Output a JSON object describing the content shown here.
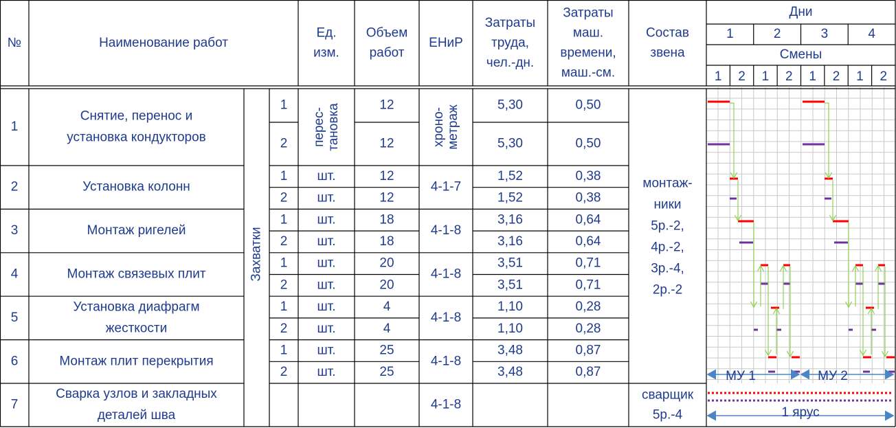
{
  "header": {
    "no": "№",
    "name": "Наименование работ",
    "unit": [
      "Ед.",
      "изм."
    ],
    "volume": [
      "Объем",
      "работ"
    ],
    "enir": "ЕНиР",
    "labor": [
      "Затраты",
      "труда,",
      "чел.-дн."
    ],
    "machine": [
      "Затраты",
      "маш.",
      "времени,",
      "маш.-см."
    ],
    "crew": [
      "Состав",
      "звена"
    ],
    "days": "Дни",
    "day_numbers": [
      "1",
      "2",
      "3",
      "4"
    ],
    "shifts": "Смены",
    "shift_numbers": [
      "1",
      "2",
      "1",
      "2",
      "1",
      "2",
      "1",
      "2"
    ]
  },
  "grips_label": "Захватки",
  "works": [
    {
      "no": "1",
      "name": [
        "Снятие, перенос и",
        "установка кондукторов"
      ],
      "unit": [
        "перес-",
        "тановка"
      ],
      "enir": [
        "хроно-",
        "метраж"
      ],
      "grips": [
        {
          "grip": "1",
          "volume": "12",
          "labor": "5,30",
          "machine": "0,50"
        },
        {
          "grip": "2",
          "volume": "12",
          "labor": "5,30",
          "machine": "0,50"
        }
      ]
    },
    {
      "no": "2",
      "name": [
        "Установка колонн"
      ],
      "enir": [
        "4-1-7"
      ],
      "grips": [
        {
          "grip": "1",
          "unit": "шт.",
          "volume": "12",
          "labor": "1,52",
          "machine": "0,38"
        },
        {
          "grip": "2",
          "unit": "шт.",
          "volume": "12",
          "labor": "1,52",
          "machine": "0,38"
        }
      ]
    },
    {
      "no": "3",
      "name": [
        "Монтаж ригелей"
      ],
      "enir": [
        "4-1-8"
      ],
      "grips": [
        {
          "grip": "1",
          "unit": "шт.",
          "volume": "18",
          "labor": "3,16",
          "machine": "0,64"
        },
        {
          "grip": "2",
          "unit": "шт.",
          "volume": "18",
          "labor": "3,16",
          "machine": "0,64"
        }
      ]
    },
    {
      "no": "4",
      "name": [
        "Монтаж связевых плит"
      ],
      "enir": [
        "4-1-8"
      ],
      "grips": [
        {
          "grip": "1",
          "unit": "шт.",
          "volume": "20",
          "labor": "3,51",
          "machine": "0,71"
        },
        {
          "grip": "2",
          "unit": "шт.",
          "volume": "20",
          "labor": "3,51",
          "machine": "0,71"
        }
      ]
    },
    {
      "no": "5",
      "name": [
        "Установка диафрагм",
        "жесткости"
      ],
      "enir": [
        "4-1-8"
      ],
      "grips": [
        {
          "grip": "1",
          "unit": "шт.",
          "volume": "4",
          "labor": "1,10",
          "machine": "0,28"
        },
        {
          "grip": "2",
          "unit": "шт.",
          "volume": "4",
          "labor": "1,10",
          "machine": "0,28"
        }
      ]
    },
    {
      "no": "6",
      "name": [
        "Монтаж плит перекрытия"
      ],
      "enir": [
        "4-1-8"
      ],
      "grips": [
        {
          "grip": "1",
          "unit": "шт.",
          "volume": "25",
          "labor": "3,48",
          "machine": "0,87"
        },
        {
          "grip": "2",
          "unit": "шт.",
          "volume": "25",
          "labor": "3,48",
          "machine": "0,87"
        }
      ]
    },
    {
      "no": "7",
      "name": [
        "Сварка узлов и закладных",
        "деталей шва"
      ],
      "enir": [
        "4-1-8"
      ],
      "grips": []
    }
  ],
  "crew": {
    "installers": [
      "монтаж-",
      "ники",
      "5р.-2,",
      "4р.-2,",
      "3р.-4,",
      "2р.-2"
    ],
    "welders": [
      "сварщик",
      "5р.-4"
    ]
  },
  "schedule_labels": {
    "mu1": "МУ 1",
    "mu2": "МУ 2",
    "tier": "1 ярус"
  }
}
